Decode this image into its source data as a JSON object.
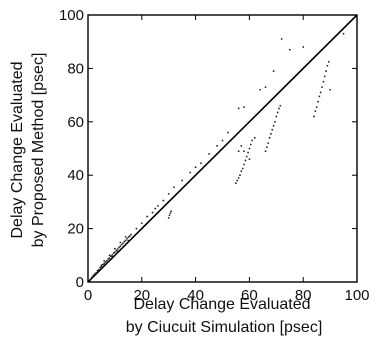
{
  "chart_data": {
    "type": "scatter",
    "title": "",
    "xlabel_lines": [
      "Delay Change Evaluated",
      "by Ciucuit Simulation [psec]"
    ],
    "ylabel_lines": [
      "Delay Change Evaluated",
      "by Proposed Method [psec]"
    ],
    "xlim": [
      0,
      100
    ],
    "ylim": [
      0,
      100
    ],
    "xticks": [
      0,
      20,
      40,
      60,
      80,
      100
    ],
    "yticks": [
      0,
      20,
      40,
      60,
      80,
      100
    ],
    "grid": false,
    "reference_line": {
      "from": [
        0,
        0
      ],
      "to": [
        100,
        100
      ]
    },
    "series": [
      {
        "marker": "dot",
        "color": "#222222",
        "points": [
          [
            1,
            1
          ],
          [
            1.5,
            1.8
          ],
          [
            2,
            2.5
          ],
          [
            2.5,
            3
          ],
          [
            3,
            3.4
          ],
          [
            3.5,
            4.2
          ],
          [
            4,
            4.6
          ],
          [
            4.5,
            5.4
          ],
          [
            5,
            5.8
          ],
          [
            5.5,
            6.5
          ],
          [
            6,
            6.9
          ],
          [
            6.5,
            7.5
          ],
          [
            7,
            8
          ],
          [
            7.5,
            8.6
          ],
          [
            8,
            9
          ],
          [
            8.5,
            9.7
          ],
          [
            9,
            10.1
          ],
          [
            9.5,
            10.8
          ],
          [
            10,
            11.2
          ],
          [
            10.5,
            11.8
          ],
          [
            11,
            12.3
          ],
          [
            11.5,
            12.9
          ],
          [
            12,
            13.4
          ],
          [
            12.5,
            14
          ],
          [
            13,
            14.5
          ],
          [
            13.5,
            15.1
          ],
          [
            14,
            15.6
          ],
          [
            14.5,
            16.2
          ],
          [
            15,
            16.8
          ],
          [
            15.5,
            17.2
          ],
          [
            16,
            17.8
          ],
          [
            3,
            3
          ],
          [
            5,
            6.3
          ],
          [
            7,
            7.2
          ],
          [
            9,
            9.5
          ],
          [
            11,
            11.5
          ],
          [
            13,
            13
          ],
          [
            15,
            15.5
          ],
          [
            8,
            10
          ],
          [
            10,
            12.5
          ],
          [
            12,
            14.8
          ],
          [
            14,
            16.9
          ],
          [
            6,
            7.9
          ],
          [
            18,
            20
          ],
          [
            20,
            22
          ],
          [
            22,
            24.5
          ],
          [
            24,
            26
          ],
          [
            25,
            27.5
          ],
          [
            26,
            28.5
          ],
          [
            28,
            30.5
          ],
          [
            30,
            33
          ],
          [
            32,
            35.5
          ],
          [
            35,
            38
          ],
          [
            38,
            41
          ],
          [
            40,
            43
          ],
          [
            42,
            44.5
          ],
          [
            45,
            48
          ],
          [
            48,
            51
          ],
          [
            50,
            53
          ],
          [
            52,
            56
          ],
          [
            30,
            24
          ],
          [
            30.3,
            25
          ],
          [
            30.6,
            25.8
          ],
          [
            30.9,
            26.5
          ],
          [
            55,
            37
          ],
          [
            55.5,
            38
          ],
          [
            56,
            39
          ],
          [
            56.5,
            40
          ],
          [
            57,
            41.5
          ],
          [
            57.5,
            42.5
          ],
          [
            58,
            44
          ],
          [
            58.5,
            45.5
          ],
          [
            59,
            47
          ],
          [
            59.5,
            48.5
          ],
          [
            60,
            50
          ],
          [
            60.5,
            51.5
          ],
          [
            61,
            53
          ],
          [
            62,
            54
          ],
          [
            60,
            46
          ],
          [
            58,
            49
          ],
          [
            57,
            51
          ],
          [
            56,
            49
          ],
          [
            66,
            49
          ],
          [
            66.5,
            50.5
          ],
          [
            67,
            52
          ],
          [
            67.5,
            54
          ],
          [
            68,
            55.5
          ],
          [
            68.5,
            57
          ],
          [
            69,
            58.5
          ],
          [
            69.5,
            60
          ],
          [
            70,
            62
          ],
          [
            70.5,
            63.5
          ],
          [
            71,
            65
          ],
          [
            71.5,
            66
          ],
          [
            84,
            62
          ],
          [
            84.5,
            64
          ],
          [
            85,
            65.5
          ],
          [
            85.5,
            67.5
          ],
          [
            86,
            69.5
          ],
          [
            86.5,
            71
          ],
          [
            87,
            73
          ],
          [
            87.5,
            75
          ],
          [
            88,
            77
          ],
          [
            88.5,
            79
          ],
          [
            89,
            81
          ],
          [
            89.5,
            82.5
          ],
          [
            56,
            65
          ],
          [
            58,
            65.5
          ],
          [
            64,
            72
          ],
          [
            66,
            73
          ],
          [
            69,
            79
          ],
          [
            75,
            87
          ],
          [
            80,
            88
          ],
          [
            72,
            91
          ],
          [
            90,
            72
          ],
          [
            95,
            93
          ]
        ]
      }
    ]
  }
}
